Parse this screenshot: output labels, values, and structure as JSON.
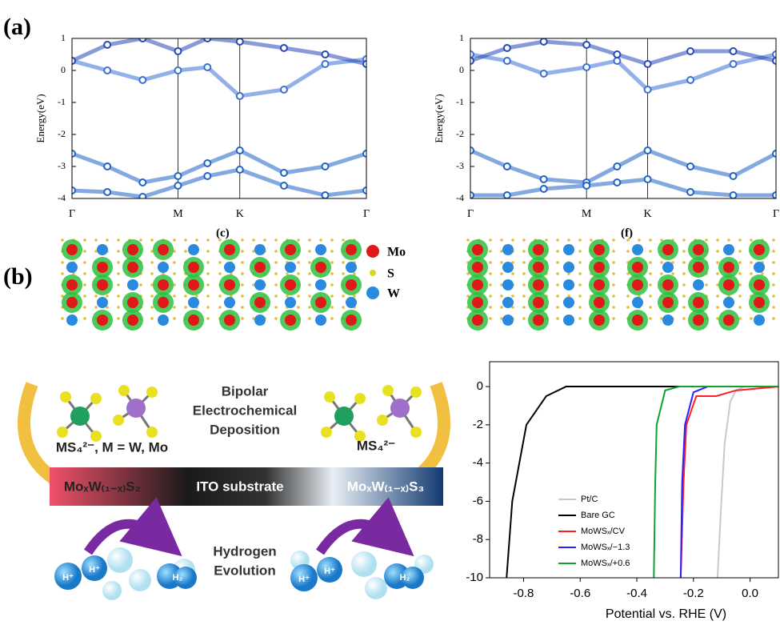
{
  "panel_labels": {
    "a": "(a)",
    "b": "(b)",
    "c": "(c)",
    "f": "(f)"
  },
  "atom_legend": [
    "Mo",
    "S",
    "W"
  ],
  "scheme": {
    "deposition": [
      "Bipolar",
      "Electrochemical",
      "Deposition"
    ],
    "left_ion": "MS₄²⁻, M = W, Mo",
    "right_ion": "MS₄²⁻",
    "left_film": "MoₓW₍₁₋ₓ₎S₂",
    "substrate": "ITO substrate",
    "right_film": "MoₓW₍₁₋ₓ₎S₃",
    "evolution": [
      "Hydrogen",
      "Evolution"
    ],
    "proton": "H⁺",
    "hydrogen": "H₂"
  },
  "chart_data": [
    {
      "type": "line",
      "markers": true,
      "ylabel": "Energy(eV)",
      "xlim": [
        0,
        1
      ],
      "ylim": [
        -4,
        1
      ],
      "yticks": [
        -4,
        -3,
        -2,
        -1,
        0,
        1
      ],
      "xticks": [
        {
          "value": 0,
          "label": "Γ"
        },
        {
          "value": 0.36,
          "label": "M"
        },
        {
          "value": 0.57,
          "label": "K"
        },
        {
          "value": 1,
          "label": "Γ"
        }
      ],
      "grid_x": true,
      "x": [
        0,
        0.12,
        0.24,
        0.36,
        0.46,
        0.57,
        0.72,
        0.86,
        1
      ],
      "series": [
        {
          "color": "#1f63c9",
          "values": [
            -2.6,
            -3.0,
            -3.5,
            -3.3,
            -2.9,
            -2.5,
            -3.2,
            -3.0,
            -2.6
          ]
        },
        {
          "color": "#1f63c9",
          "values": [
            -3.75,
            -3.8,
            -3.95,
            -3.6,
            -3.3,
            -3.1,
            -3.6,
            -3.9,
            -3.75
          ]
        },
        {
          "color": "#3a6fd6",
          "values": [
            0.3,
            0.0,
            -0.3,
            0.0,
            0.1,
            -0.8,
            -0.6,
            0.2,
            0.35
          ]
        },
        {
          "color": "#2747b8",
          "values": [
            0.3,
            0.8,
            1.0,
            0.6,
            1.0,
            0.9,
            0.7,
            0.5,
            0.2
          ]
        }
      ]
    },
    {
      "type": "line",
      "markers": true,
      "ylabel": "Energy(eV)",
      "xlim": [
        0,
        1
      ],
      "ylim": [
        -4,
        1
      ],
      "yticks": [
        -4,
        -3,
        -2,
        -1,
        0,
        1
      ],
      "xticks": [
        {
          "value": 0,
          "label": "Γ"
        },
        {
          "value": 0.38,
          "label": "M"
        },
        {
          "value": 0.58,
          "label": "K"
        },
        {
          "value": 1,
          "label": "Γ"
        }
      ],
      "grid_x": true,
      "x": [
        0,
        0.12,
        0.24,
        0.38,
        0.48,
        0.58,
        0.72,
        0.86,
        1
      ],
      "series": [
        {
          "color": "#1f63c9",
          "values": [
            -2.5,
            -3.0,
            -3.4,
            -3.5,
            -3.0,
            -2.5,
            -3.0,
            -3.3,
            -2.6
          ]
        },
        {
          "color": "#1f63c9",
          "values": [
            -3.9,
            -3.9,
            -3.7,
            -3.6,
            -3.5,
            -3.4,
            -3.8,
            -3.9,
            -3.9
          ]
        },
        {
          "color": "#3a6fd6",
          "values": [
            0.5,
            0.3,
            -0.1,
            0.1,
            0.3,
            -0.6,
            -0.3,
            0.2,
            0.5
          ]
        },
        {
          "color": "#2747b8",
          "values": [
            0.3,
            0.7,
            0.9,
            0.8,
            0.5,
            0.2,
            0.6,
            0.6,
            0.3
          ]
        }
      ]
    },
    {
      "type": "line",
      "markers": false,
      "xlabel": "Potential vs. RHE (V)",
      "xlim": [
        -0.92,
        0.1
      ],
      "ylim": [
        -10,
        1.3
      ],
      "xticks": [
        {
          "value": -0.8,
          "label": "-0.8"
        },
        {
          "value": -0.6,
          "label": "-0.6"
        },
        {
          "value": -0.4,
          "label": "-0.4"
        },
        {
          "value": -0.2,
          "label": "-0.2"
        },
        {
          "value": 0,
          "label": "0.0"
        }
      ],
      "yticks": [
        -10,
        -8,
        -6,
        -4,
        -2,
        0
      ],
      "legend": "lower right",
      "series": [
        {
          "name": "Pt/C",
          "color": "#c8c8c8",
          "x": [
            -0.115,
            -0.105,
            -0.09,
            -0.07,
            -0.05,
            -0.02,
            0.1
          ],
          "values": [
            -10,
            -7,
            -3,
            -0.8,
            -0.2,
            0,
            0
          ]
        },
        {
          "name": "Bare GC",
          "color": "#000000",
          "x": [
            -0.86,
            -0.84,
            -0.79,
            -0.72,
            -0.65,
            0.1
          ],
          "values": [
            -10,
            -6,
            -2,
            -0.5,
            0,
            0
          ]
        },
        {
          "name": "MoWSₓ/CV",
          "color": "#ff2020",
          "x": [
            -0.245,
            -0.235,
            -0.225,
            -0.19,
            -0.12,
            -0.05,
            0.1
          ],
          "values": [
            -10,
            -5,
            -2,
            -0.5,
            -0.5,
            -0.2,
            0
          ]
        },
        {
          "name": "MoWSₓ/−1.3",
          "color": "#2a20ff",
          "x": [
            -0.245,
            -0.24,
            -0.23,
            -0.2,
            -0.15,
            0.1
          ],
          "values": [
            -10,
            -5,
            -2,
            -0.3,
            0,
            0
          ]
        },
        {
          "name": "MoWSₓ/+0.6",
          "color": "#10a030",
          "x": [
            -0.34,
            -0.335,
            -0.33,
            -0.3,
            -0.25,
            0.1
          ],
          "values": [
            -10,
            -5,
            -2,
            -0.2,
            0,
            0
          ]
        }
      ]
    }
  ]
}
